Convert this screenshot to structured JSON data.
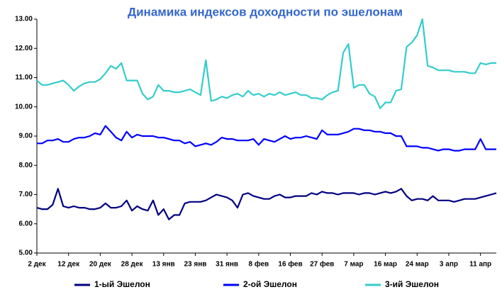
{
  "chart_data": {
    "type": "line",
    "title": "Динамика индексов доходности  по эшелонам",
    "categories": [
      "2 дек",
      null,
      null,
      null,
      null,
      null,
      "12 дек",
      null,
      null,
      null,
      null,
      null,
      "20 дек",
      null,
      null,
      null,
      null,
      null,
      "28 дек",
      null,
      null,
      null,
      null,
      null,
      "13 янв",
      null,
      null,
      null,
      null,
      null,
      "23 янв",
      null,
      null,
      null,
      null,
      null,
      "31 янв",
      null,
      null,
      null,
      null,
      null,
      "8 фев",
      null,
      null,
      null,
      null,
      null,
      "16 фев",
      null,
      null,
      null,
      null,
      null,
      "27 фев",
      null,
      null,
      null,
      null,
      null,
      "7 мар",
      null,
      null,
      null,
      null,
      null,
      "16 мар",
      null,
      null,
      null,
      null,
      null,
      "24 мар",
      null,
      null,
      null,
      null,
      null,
      "3 апр",
      null,
      null,
      null,
      null,
      null,
      "11 апр",
      null,
      null,
      null
    ],
    "series": [
      {
        "name": "1-ый Эшелон",
        "color": "#000080",
        "values": [
          6.55,
          6.5,
          6.5,
          6.65,
          7.2,
          6.6,
          6.55,
          6.6,
          6.55,
          6.55,
          6.5,
          6.5,
          6.55,
          6.7,
          6.55,
          6.55,
          6.6,
          6.8,
          6.45,
          6.6,
          6.5,
          6.45,
          6.8,
          6.3,
          6.5,
          6.15,
          6.3,
          6.3,
          6.7,
          6.75,
          6.75,
          6.75,
          6.8,
          6.9,
          7.0,
          6.95,
          6.9,
          6.8,
          6.55,
          7.0,
          7.05,
          6.95,
          6.9,
          6.85,
          6.85,
          6.95,
          7.0,
          6.9,
          6.9,
          6.95,
          6.95,
          6.95,
          7.05,
          7.0,
          7.1,
          7.05,
          7.05,
          7.0,
          7.05,
          7.05,
          7.05,
          7.0,
          7.05,
          7.05,
          7.0,
          7.05,
          7.1,
          7.05,
          7.1,
          7.2,
          6.95,
          6.8,
          6.85,
          6.85,
          6.8,
          6.95,
          6.8,
          6.8,
          6.8,
          6.75,
          6.8,
          6.85,
          6.85,
          6.85,
          6.9,
          6.95,
          7.0,
          7.05
        ]
      },
      {
        "name": "2-ой Эшелон",
        "color": "#0000ff",
        "values": [
          8.75,
          8.75,
          8.85,
          8.85,
          8.9,
          8.8,
          8.8,
          8.9,
          8.95,
          8.95,
          9.0,
          9.1,
          9.05,
          9.35,
          9.15,
          8.95,
          8.85,
          9.15,
          8.95,
          9.05,
          9.0,
          9.0,
          9.0,
          8.95,
          8.95,
          8.9,
          8.85,
          8.85,
          8.75,
          8.8,
          8.65,
          8.7,
          8.75,
          8.7,
          8.8,
          8.95,
          8.9,
          8.9,
          8.85,
          8.85,
          8.85,
          8.9,
          8.7,
          8.9,
          8.85,
          8.8,
          8.9,
          9.0,
          8.9,
          8.95,
          8.95,
          9.0,
          8.95,
          8.9,
          9.2,
          9.05,
          9.05,
          9.05,
          9.1,
          9.15,
          9.25,
          9.25,
          9.2,
          9.2,
          9.15,
          9.15,
          9.1,
          9.1,
          9.0,
          9.0,
          8.65,
          8.65,
          8.65,
          8.6,
          8.6,
          8.55,
          8.5,
          8.55,
          8.55,
          8.5,
          8.5,
          8.55,
          8.55,
          8.55,
          8.9,
          8.55,
          8.55,
          8.55
        ]
      },
      {
        "name": "3-ий Эшелон",
        "color": "#33cccc",
        "values": [
          10.9,
          10.75,
          10.75,
          10.8,
          10.85,
          10.9,
          10.75,
          10.55,
          10.7,
          10.8,
          10.85,
          10.85,
          10.95,
          11.15,
          11.4,
          11.3,
          11.5,
          10.9,
          10.9,
          10.9,
          10.45,
          10.25,
          10.35,
          10.75,
          10.55,
          10.55,
          10.5,
          10.5,
          10.55,
          10.6,
          10.5,
          10.4,
          11.6,
          10.2,
          10.25,
          10.35,
          10.3,
          10.4,
          10.45,
          10.35,
          10.55,
          10.4,
          10.45,
          10.35,
          10.45,
          10.4,
          10.5,
          10.4,
          10.45,
          10.5,
          10.4,
          10.4,
          10.3,
          10.3,
          10.25,
          10.4,
          10.5,
          10.55,
          11.85,
          12.15,
          10.65,
          10.75,
          10.75,
          10.45,
          10.35,
          9.95,
          10.15,
          10.15,
          10.55,
          10.6,
          12.05,
          12.2,
          12.45,
          13.0,
          11.4,
          11.35,
          11.25,
          11.25,
          11.25,
          11.2,
          11.2,
          11.2,
          11.15,
          11.15,
          11.5,
          11.45,
          11.5,
          11.5
        ]
      }
    ],
    "ylim": [
      5,
      13
    ],
    "yticks": [
      {
        "value": 5,
        "label": "5.00"
      },
      {
        "value": 6,
        "label": "6.00"
      },
      {
        "value": 7,
        "label": "7.00"
      },
      {
        "value": 8,
        "label": "8.00"
      },
      {
        "value": 9,
        "label": "9.00"
      },
      {
        "value": 10,
        "label": "10.00"
      },
      {
        "value": 11,
        "label": "11.00"
      },
      {
        "value": 12,
        "label": "12.00"
      },
      {
        "value": 13,
        "label": "13.00"
      }
    ],
    "grid": false,
    "legend": "bottom"
  }
}
